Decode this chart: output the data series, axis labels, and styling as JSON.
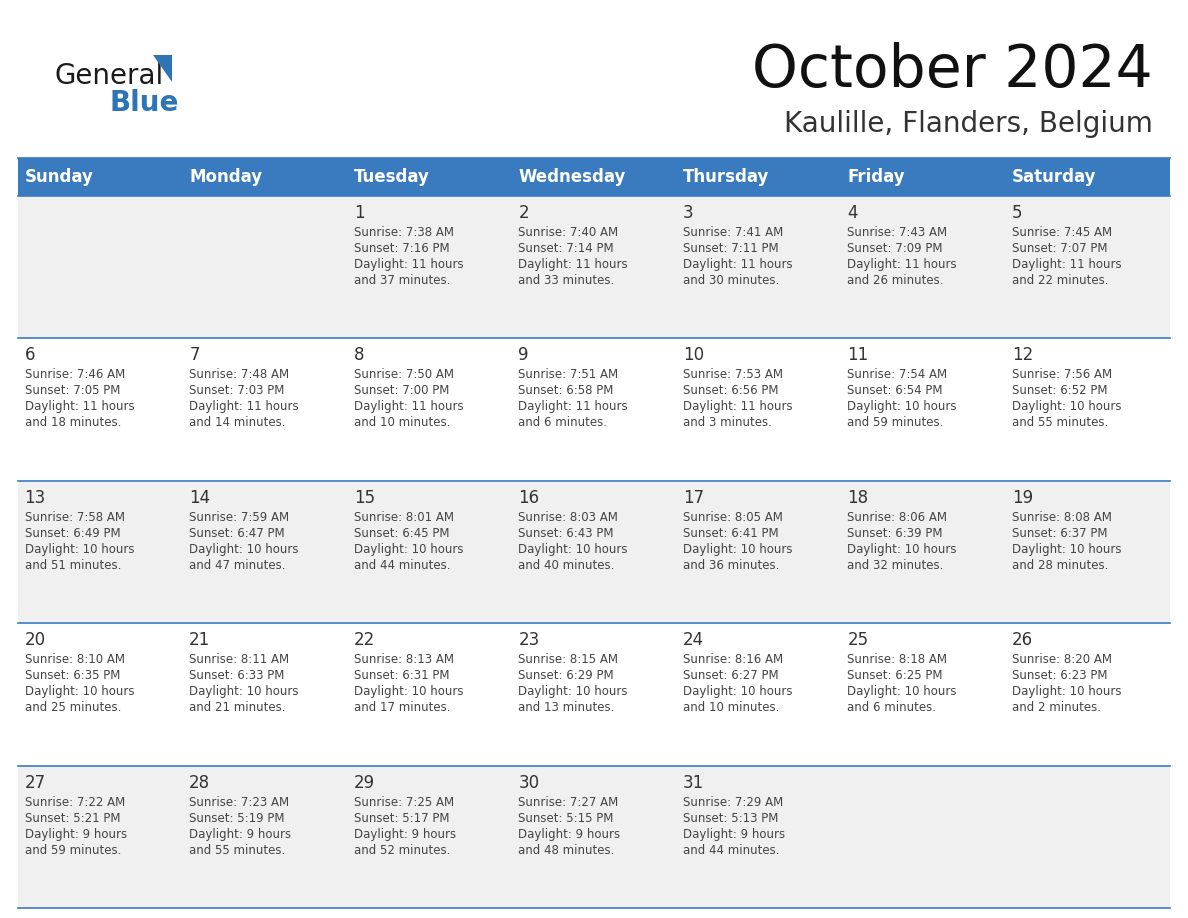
{
  "title": "October 2024",
  "subtitle": "Kaulille, Flanders, Belgium",
  "days_of_week": [
    "Sunday",
    "Monday",
    "Tuesday",
    "Wednesday",
    "Thursday",
    "Friday",
    "Saturday"
  ],
  "header_bg": "#3A7ABF",
  "header_text_color": "#FFFFFF",
  "row_bg_even": "#F0F0F0",
  "row_bg_odd": "#FFFFFF",
  "cell_text_color": "#444444",
  "day_number_color": "#333333",
  "general_text_color": "#222222",
  "general_blue_color": "#2E75B6",
  "line_color": "#3A7ABF",
  "calendar_data": [
    [
      {
        "day": "",
        "sunrise": "",
        "sunset": "",
        "daylight": ""
      },
      {
        "day": "",
        "sunrise": "",
        "sunset": "",
        "daylight": ""
      },
      {
        "day": "1",
        "sunrise": "7:38 AM",
        "sunset": "7:16 PM",
        "daylight": "11 hours\nand 37 minutes."
      },
      {
        "day": "2",
        "sunrise": "7:40 AM",
        "sunset": "7:14 PM",
        "daylight": "11 hours\nand 33 minutes."
      },
      {
        "day": "3",
        "sunrise": "7:41 AM",
        "sunset": "7:11 PM",
        "daylight": "11 hours\nand 30 minutes."
      },
      {
        "day": "4",
        "sunrise": "7:43 AM",
        "sunset": "7:09 PM",
        "daylight": "11 hours\nand 26 minutes."
      },
      {
        "day": "5",
        "sunrise": "7:45 AM",
        "sunset": "7:07 PM",
        "daylight": "11 hours\nand 22 minutes."
      }
    ],
    [
      {
        "day": "6",
        "sunrise": "7:46 AM",
        "sunset": "7:05 PM",
        "daylight": "11 hours\nand 18 minutes."
      },
      {
        "day": "7",
        "sunrise": "7:48 AM",
        "sunset": "7:03 PM",
        "daylight": "11 hours\nand 14 minutes."
      },
      {
        "day": "8",
        "sunrise": "7:50 AM",
        "sunset": "7:00 PM",
        "daylight": "11 hours\nand 10 minutes."
      },
      {
        "day": "9",
        "sunrise": "7:51 AM",
        "sunset": "6:58 PM",
        "daylight": "11 hours\nand 6 minutes."
      },
      {
        "day": "10",
        "sunrise": "7:53 AM",
        "sunset": "6:56 PM",
        "daylight": "11 hours\nand 3 minutes."
      },
      {
        "day": "11",
        "sunrise": "7:54 AM",
        "sunset": "6:54 PM",
        "daylight": "10 hours\nand 59 minutes."
      },
      {
        "day": "12",
        "sunrise": "7:56 AM",
        "sunset": "6:52 PM",
        "daylight": "10 hours\nand 55 minutes."
      }
    ],
    [
      {
        "day": "13",
        "sunrise": "7:58 AM",
        "sunset": "6:49 PM",
        "daylight": "10 hours\nand 51 minutes."
      },
      {
        "day": "14",
        "sunrise": "7:59 AM",
        "sunset": "6:47 PM",
        "daylight": "10 hours\nand 47 minutes."
      },
      {
        "day": "15",
        "sunrise": "8:01 AM",
        "sunset": "6:45 PM",
        "daylight": "10 hours\nand 44 minutes."
      },
      {
        "day": "16",
        "sunrise": "8:03 AM",
        "sunset": "6:43 PM",
        "daylight": "10 hours\nand 40 minutes."
      },
      {
        "day": "17",
        "sunrise": "8:05 AM",
        "sunset": "6:41 PM",
        "daylight": "10 hours\nand 36 minutes."
      },
      {
        "day": "18",
        "sunrise": "8:06 AM",
        "sunset": "6:39 PM",
        "daylight": "10 hours\nand 32 minutes."
      },
      {
        "day": "19",
        "sunrise": "8:08 AM",
        "sunset": "6:37 PM",
        "daylight": "10 hours\nand 28 minutes."
      }
    ],
    [
      {
        "day": "20",
        "sunrise": "8:10 AM",
        "sunset": "6:35 PM",
        "daylight": "10 hours\nand 25 minutes."
      },
      {
        "day": "21",
        "sunrise": "8:11 AM",
        "sunset": "6:33 PM",
        "daylight": "10 hours\nand 21 minutes."
      },
      {
        "day": "22",
        "sunrise": "8:13 AM",
        "sunset": "6:31 PM",
        "daylight": "10 hours\nand 17 minutes."
      },
      {
        "day": "23",
        "sunrise": "8:15 AM",
        "sunset": "6:29 PM",
        "daylight": "10 hours\nand 13 minutes."
      },
      {
        "day": "24",
        "sunrise": "8:16 AM",
        "sunset": "6:27 PM",
        "daylight": "10 hours\nand 10 minutes."
      },
      {
        "day": "25",
        "sunrise": "8:18 AM",
        "sunset": "6:25 PM",
        "daylight": "10 hours\nand 6 minutes."
      },
      {
        "day": "26",
        "sunrise": "8:20 AM",
        "sunset": "6:23 PM",
        "daylight": "10 hours\nand 2 minutes."
      }
    ],
    [
      {
        "day": "27",
        "sunrise": "7:22 AM",
        "sunset": "5:21 PM",
        "daylight": "9 hours\nand 59 minutes."
      },
      {
        "day": "28",
        "sunrise": "7:23 AM",
        "sunset": "5:19 PM",
        "daylight": "9 hours\nand 55 minutes."
      },
      {
        "day": "29",
        "sunrise": "7:25 AM",
        "sunset": "5:17 PM",
        "daylight": "9 hours\nand 52 minutes."
      },
      {
        "day": "30",
        "sunrise": "7:27 AM",
        "sunset": "5:15 PM",
        "daylight": "9 hours\nand 48 minutes."
      },
      {
        "day": "31",
        "sunrise": "7:29 AM",
        "sunset": "5:13 PM",
        "daylight": "9 hours\nand 44 minutes."
      },
      {
        "day": "",
        "sunrise": "",
        "sunset": "",
        "daylight": ""
      },
      {
        "day": "",
        "sunrise": "",
        "sunset": "",
        "daylight": ""
      }
    ]
  ]
}
